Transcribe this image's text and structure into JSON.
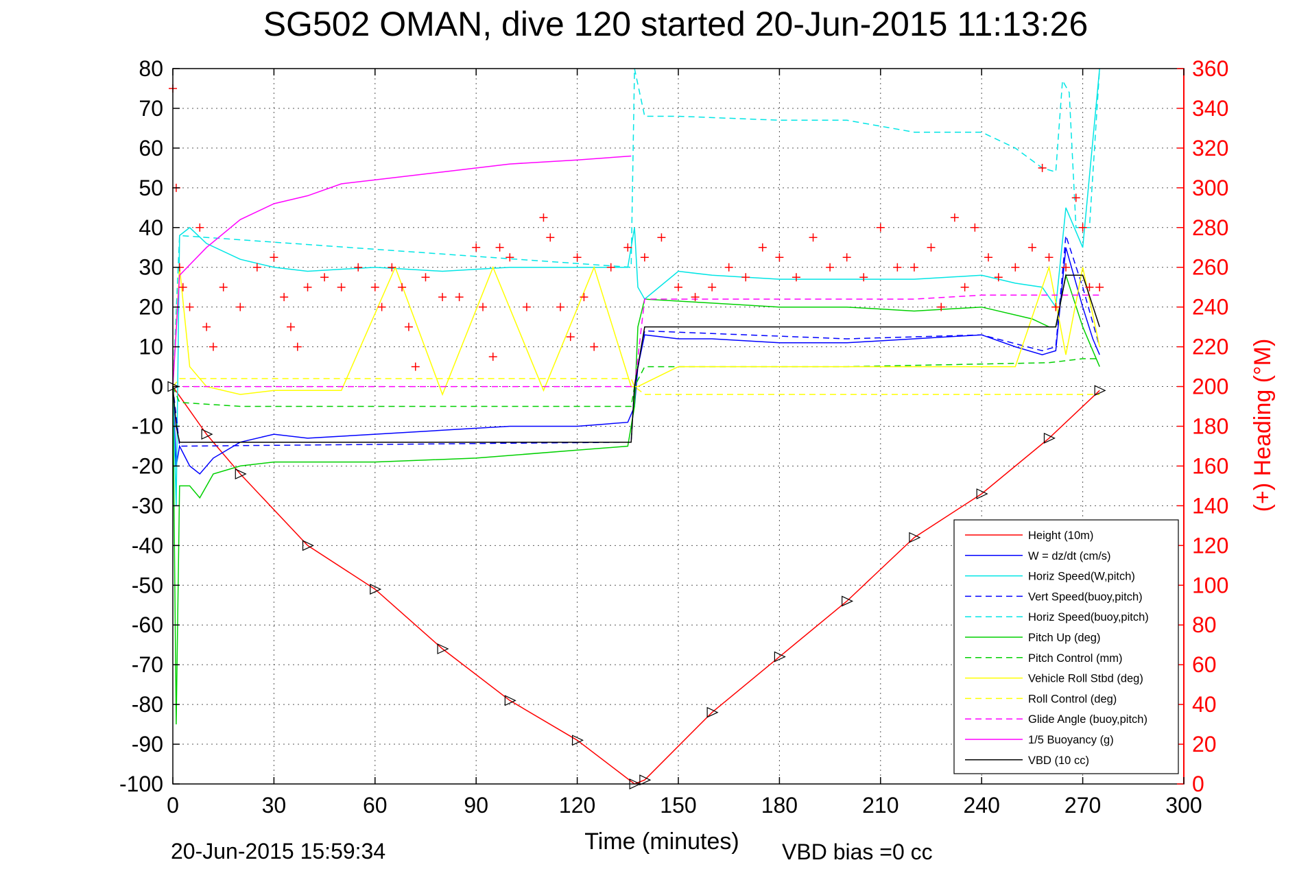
{
  "chart_data": {
    "type": "line",
    "title": "SG502 OMAN, dive 120 started 20-Jun-2015 11:13:26",
    "xlabel": "Time (minutes)",
    "ylabel_right": "(+) Heading (°M)",
    "footer_left": "20-Jun-2015 15:59:34",
    "footer_right": "VBD bias =0 cc",
    "xlim": [
      0,
      300
    ],
    "ylim_left": [
      -100,
      80
    ],
    "ylim_right": [
      0,
      360
    ],
    "xticks": [
      0,
      30,
      60,
      90,
      120,
      150,
      180,
      210,
      240,
      270,
      300
    ],
    "yticks_left": [
      -100,
      -90,
      -80,
      -70,
      -60,
      -50,
      -40,
      -30,
      -20,
      -10,
      0,
      10,
      20,
      30,
      40,
      50,
      60,
      70,
      80
    ],
    "yticks_right": [
      0,
      20,
      40,
      60,
      80,
      100,
      120,
      140,
      160,
      180,
      200,
      220,
      240,
      260,
      280,
      300,
      320,
      340,
      360
    ],
    "grid": true,
    "legend_position": "bottom-right",
    "colors": {
      "red": "#ff0000",
      "blue": "#0000ff",
      "cyan": "#00e5e5",
      "green": "#00d000",
      "yellow": "#ffff00",
      "magenta": "#ff00ff",
      "black": "#000000"
    },
    "series": [
      {
        "name": "Height (10m)",
        "color": "#ff0000",
        "style": "solid",
        "axis": "left",
        "x": [
          0,
          10,
          20,
          40,
          60,
          80,
          100,
          120,
          137,
          140,
          160,
          180,
          200,
          220,
          240,
          260,
          275
        ],
        "y": [
          0,
          -12,
          -22,
          -40,
          -51,
          -66,
          -79,
          -89,
          -100,
          -99,
          -82,
          -68,
          -54,
          -38,
          -27,
          -13,
          -1
        ]
      },
      {
        "name": "W = dz/dt (cm/s)",
        "color": "#0000ff",
        "style": "solid",
        "axis": "left",
        "x": [
          0,
          1,
          2,
          5,
          8,
          12,
          20,
          30,
          40,
          60,
          80,
          100,
          120,
          135,
          137,
          138,
          140,
          150,
          160,
          180,
          200,
          220,
          240,
          250,
          258,
          262,
          265,
          270,
          273,
          275
        ],
        "y": [
          0,
          -20,
          -15,
          -20,
          -22,
          -18,
          -14,
          -12,
          -13,
          -12,
          -11,
          -10,
          -10,
          -9,
          -5,
          5,
          13,
          12,
          12,
          11,
          11,
          12,
          13,
          10,
          8,
          9,
          35,
          20,
          12,
          8
        ]
      },
      {
        "name": "Horiz Speed(W,pitch)",
        "color": "#00e5e5",
        "style": "solid",
        "axis": "left",
        "x": [
          0,
          1,
          2,
          5,
          10,
          20,
          30,
          40,
          60,
          80,
          100,
          120,
          135,
          137,
          138,
          140,
          150,
          160,
          180,
          200,
          220,
          240,
          250,
          258,
          262,
          265,
          270,
          275
        ],
        "y": [
          0,
          -30,
          38,
          40,
          36,
          32,
          30,
          29,
          30,
          29,
          30,
          30,
          30,
          40,
          25,
          22,
          29,
          28,
          27,
          27,
          27,
          28,
          26,
          25,
          20,
          45,
          35,
          80
        ]
      },
      {
        "name": "Vert Speed(buoy,pitch)",
        "color": "#0000ff",
        "style": "dashed",
        "axis": "left",
        "x": [
          0,
          2,
          136,
          137,
          140,
          200,
          240,
          258,
          262,
          265,
          270,
          275
        ],
        "y": [
          0,
          -15,
          -14,
          0,
          14,
          12,
          13,
          9,
          10,
          38,
          25,
          10
        ]
      },
      {
        "name": "Horiz Speed(buoy,pitch)",
        "color": "#00e5e5",
        "style": "dashed",
        "axis": "left",
        "x": [
          0,
          2,
          136,
          137,
          140,
          150,
          180,
          200,
          220,
          240,
          250,
          258,
          262,
          264,
          266,
          268,
          272,
          275
        ],
        "y": [
          0,
          38,
          30,
          80,
          68,
          68,
          67,
          67,
          64,
          64,
          60,
          55,
          54,
          77,
          74,
          40,
          40,
          80
        ]
      },
      {
        "name": "Pitch Up (deg)",
        "color": "#00d000",
        "style": "solid",
        "axis": "left",
        "x": [
          0,
          1,
          2,
          5,
          8,
          12,
          20,
          30,
          60,
          90,
          120,
          135,
          137,
          138,
          140,
          160,
          180,
          200,
          220,
          240,
          255,
          260,
          262,
          265,
          270,
          275
        ],
        "y": [
          0,
          -85,
          -25,
          -25,
          -28,
          -22,
          -20,
          -19,
          -19,
          -18,
          -16,
          -15,
          -5,
          15,
          22,
          21,
          20,
          20,
          19,
          20,
          17,
          15,
          15,
          28,
          15,
          5
        ]
      },
      {
        "name": "Pitch Control (mm)",
        "color": "#00d000",
        "style": "dashed",
        "axis": "left",
        "x": [
          0,
          2,
          20,
          60,
          136,
          137,
          140,
          200,
          260,
          270,
          275
        ],
        "y": [
          0,
          -4,
          -5,
          -5,
          -5,
          0,
          5,
          5,
          6,
          7,
          7
        ]
      },
      {
        "name": "Vehicle Roll Stbd (deg)",
        "color": "#ffff00",
        "style": "solid",
        "axis": "left",
        "x": [
          0,
          2,
          5,
          10,
          20,
          30,
          50,
          66,
          80,
          95,
          110,
          125,
          136,
          138,
          150,
          170,
          190,
          210,
          230,
          250,
          260,
          265,
          270,
          275
        ],
        "y": [
          0,
          30,
          5,
          0,
          -2,
          -1,
          -1,
          30,
          -2,
          30,
          -1,
          30,
          0,
          0,
          5,
          5,
          5,
          5,
          5,
          5,
          30,
          8,
          30,
          10
        ]
      },
      {
        "name": "Roll Control (deg)",
        "color": "#ffff00",
        "style": "dashed",
        "axis": "left",
        "x": [
          0,
          2,
          136,
          137,
          140,
          200,
          260,
          275
        ],
        "y": [
          0,
          2,
          2,
          0,
          -2,
          -2,
          -2,
          -2
        ]
      },
      {
        "name": "Glide Angle (buoy,pitch)",
        "color": "#ff00ff",
        "style": "dashed",
        "axis": "left",
        "x": [
          0,
          136,
          137,
          140,
          180,
          220,
          240,
          260,
          265,
          275
        ],
        "y": [
          0,
          0,
          0,
          22,
          22,
          22,
          23,
          23,
          23,
          23
        ]
      },
      {
        "name": "1/5 Buoyancy (g)",
        "color": "#ff00ff",
        "style": "solid",
        "axis": "left",
        "x": [
          0,
          2,
          10,
          20,
          30,
          40,
          50,
          60,
          80,
          100,
          120,
          136
        ],
        "y": [
          0,
          28,
          35,
          42,
          46,
          48,
          51,
          52,
          54,
          56,
          57,
          58
        ]
      },
      {
        "name": "VBD (10 cc)",
        "color": "#000000",
        "style": "solid",
        "axis": "left",
        "x": [
          0,
          1,
          2,
          136,
          137,
          140,
          260,
          262,
          265,
          270,
          275
        ],
        "y": [
          0,
          -10,
          -14,
          -14,
          0,
          15,
          15,
          15,
          28,
          28,
          15
        ]
      }
    ],
    "heading_series": {
      "name": "(+) Heading",
      "color": "#ff0000",
      "marker": "+",
      "axis": "right",
      "x": [
        0,
        1,
        2,
        3,
        5,
        8,
        10,
        12,
        15,
        20,
        25,
        30,
        33,
        35,
        37,
        40,
        45,
        50,
        55,
        60,
        62,
        65,
        68,
        70,
        72,
        75,
        80,
        85,
        90,
        92,
        95,
        97,
        100,
        105,
        110,
        112,
        115,
        118,
        120,
        122,
        125,
        130,
        135,
        140,
        145,
        150,
        155,
        160,
        165,
        170,
        175,
        180,
        185,
        190,
        195,
        200,
        205,
        210,
        215,
        220,
        225,
        228,
        232,
        235,
        238,
        242,
        245,
        250,
        255,
        258,
        260,
        262,
        265,
        268,
        270,
        272,
        275
      ],
      "y": [
        350,
        300,
        260,
        250,
        240,
        280,
        230,
        220,
        250,
        240,
        260,
        265,
        245,
        230,
        220,
        250,
        255,
        250,
        260,
        250,
        240,
        260,
        250,
        230,
        210,
        255,
        245,
        245,
        270,
        240,
        215,
        270,
        265,
        240,
        285,
        275,
        240,
        225,
        265,
        245,
        220,
        260,
        270,
        265,
        275,
        250,
        245,
        250,
        260,
        255,
        270,
        265,
        255,
        275,
        260,
        265,
        255,
        280,
        260,
        260,
        270,
        240,
        285,
        250,
        280,
        265,
        255,
        260,
        270,
        310,
        265,
        240,
        260,
        295,
        280,
        250,
        250
      ]
    }
  }
}
